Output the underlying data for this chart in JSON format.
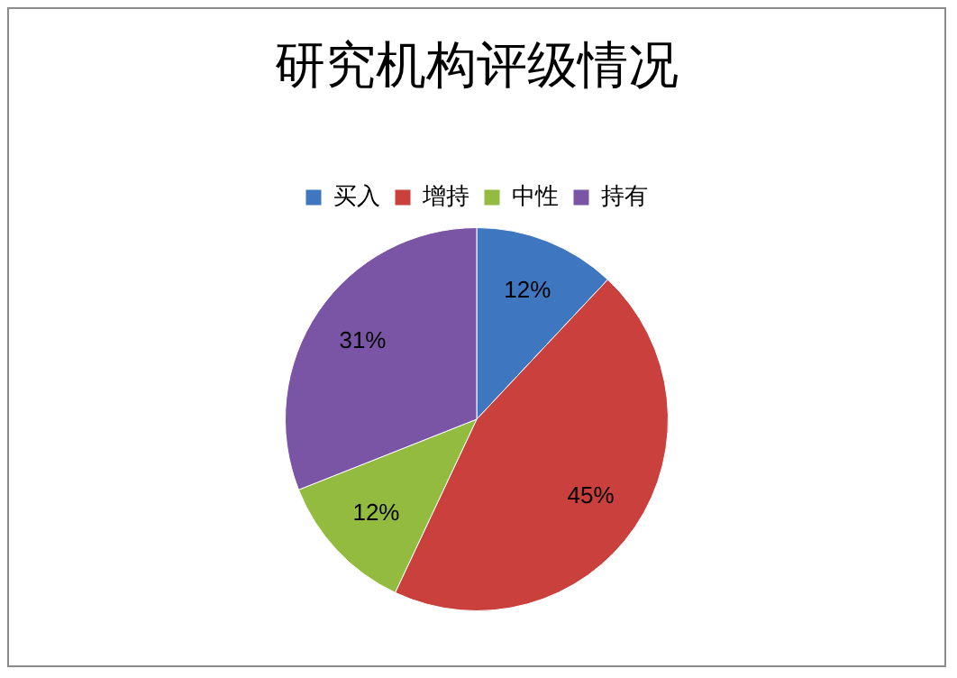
{
  "chart_data": {
    "type": "pie",
    "title": "研究机构评级情况",
    "categories": [
      "买入",
      "增持",
      "中性",
      "持有"
    ],
    "values": [
      12,
      45,
      12,
      31
    ],
    "colors": [
      "#3f76c0",
      "#c9403c",
      "#92bb40",
      "#7a55a6"
    ],
    "value_labels": [
      "12%",
      "45%",
      "12%",
      "31%"
    ],
    "legend": "top"
  }
}
